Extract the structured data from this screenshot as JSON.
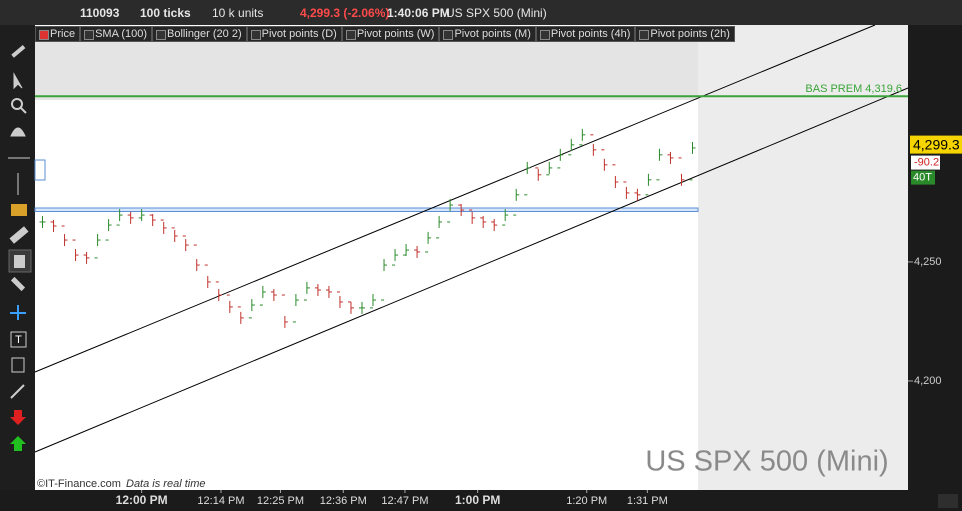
{
  "toolbar": {
    "account": "110093",
    "ticks": "100 ticks",
    "units": "10 k units",
    "quote": "4,299.3 (-2.06%)",
    "time": "1:40:06 PM",
    "instrument": "US SPX 500 (Mini)"
  },
  "indicators": [
    "Price",
    "SMA (100)",
    "Bollinger (20 2)",
    "Pivot points (D)",
    "Pivot points (W)",
    "Pivot points (M)",
    "Pivot points (4h)",
    "Pivot points (2h)"
  ],
  "chart_data": {
    "type": "tick-bar",
    "title": "US SPX 500 (Mini)",
    "values": [
      4266.8,
      4265.1,
      4259.2,
      4252.9,
      4251.7,
      4259.2,
      4265.5,
      4269.7,
      4268.5,
      4269.7,
      4267.6,
      4264.3,
      4260.9,
      4257.1,
      4248.7,
      4241.6,
      4236.1,
      4231.1,
      4226.5,
      4231.9,
      4237.4,
      4236.1,
      4224.8,
      4234.0,
      4239.1,
      4238.2,
      4237.4,
      4233.2,
      4230.7,
      4230.7,
      4234.0,
      4248.7,
      4252.9,
      4255.0,
      4254.2,
      4260.1,
      4266.8,
      4273.9,
      4271.8,
      4268.5,
      4266.8,
      4265.5,
      4269.7,
      4278.2,
      4289.5,
      4286.6,
      4289.5,
      4295.0,
      4299.2,
      4303.4,
      4297.1,
      4290.8,
      4283.6,
      4279.0,
      4278.2,
      4284.5,
      4295.0,
      4293.7,
      4284.5,
      4297.9
    ],
    "up_color": "#2a8a2a",
    "down_color": "#c0302a",
    "xlim": [
      0,
      60
    ],
    "xticks": [
      {
        "value": 9.5,
        "label": "12:00 PM"
      },
      {
        "value": 16.7,
        "label": "12:14 PM"
      },
      {
        "value": 22.1,
        "label": "12:25 PM"
      },
      {
        "value": 27.8,
        "label": "12:36 PM"
      },
      {
        "value": 33.4,
        "label": "12:47 PM"
      },
      {
        "value": 40.0,
        "label": "1:00 PM"
      },
      {
        "value": 49.9,
        "label": "1:20 PM"
      },
      {
        "value": 55.4,
        "label": "1:31 PM"
      }
    ],
    "ylim": [
      4154.2,
      4348.7
    ],
    "yticks": [
      {
        "value": 4250,
        "label": "4,250"
      },
      {
        "value": 4200,
        "label": "4,200"
      }
    ],
    "last_price": {
      "value": 4299.3,
      "label": "4,299.3"
    },
    "change": "-90.2",
    "tick_count": "40T",
    "level": {
      "value": 4319.6,
      "label": "BAS PREM 4,319.6",
      "color": "#3aa43a"
    },
    "copyright": "©IT-Finance.com",
    "realtime_note": "Data is real time"
  }
}
